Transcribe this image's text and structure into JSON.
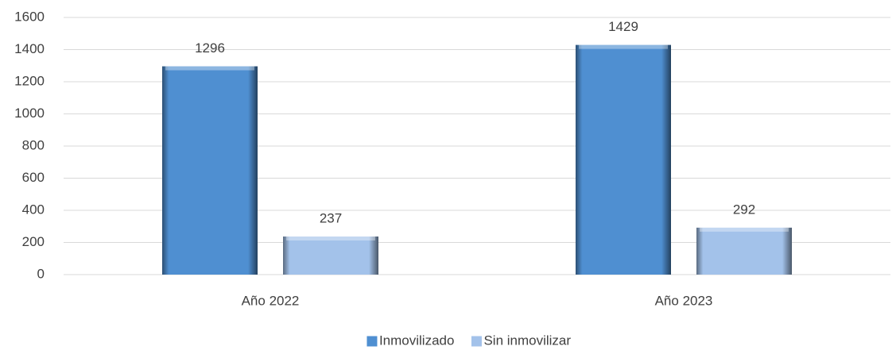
{
  "chart_data": {
    "type": "bar",
    "categories": [
      "Año 2022",
      "Año 2023"
    ],
    "series": [
      {
        "name": "Inmovilizado",
        "color": "#4f8fd1",
        "values": [
          1296,
          1429
        ]
      },
      {
        "name": "Sin inmovilizar",
        "color": "#a3c2ea",
        "values": [
          237,
          292
        ]
      }
    ],
    "ylim": [
      0,
      1600
    ],
    "yticks": [
      0,
      200,
      400,
      600,
      800,
      1000,
      1200,
      1400,
      1600
    ],
    "grid": true,
    "legend": "bottom"
  }
}
